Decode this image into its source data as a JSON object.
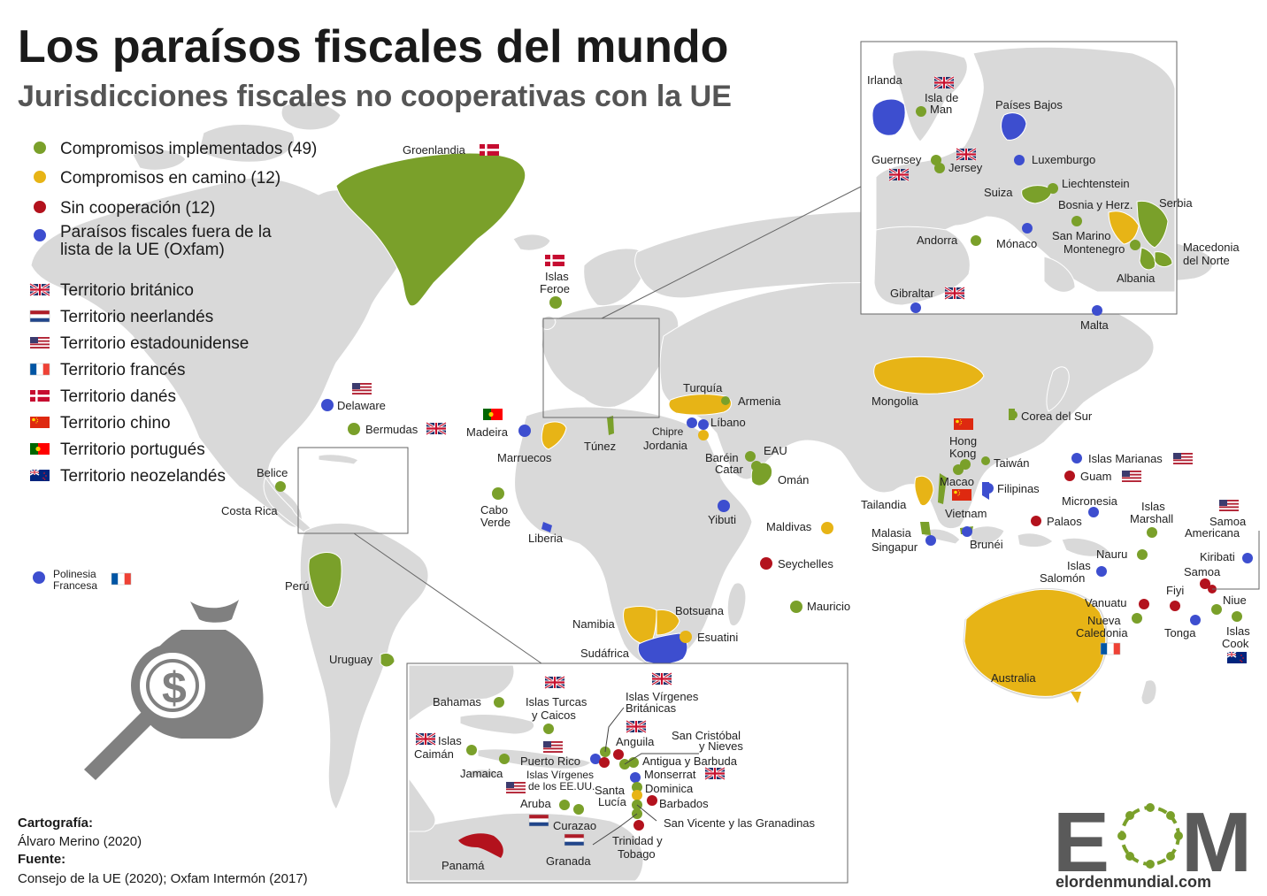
{
  "header": {
    "title": "Los paraísos fiscales del mundo",
    "subtitle": "Jurisdicciones fiscales no cooperativas con la UE"
  },
  "colors": {
    "implemented": "#7aa02a",
    "on_track": "#e7b416",
    "no_coop": "#b3121d",
    "outside_list": "#3d4ecf",
    "land": "#d9d9d9",
    "sea": "#ffffff",
    "icon": "#808080"
  },
  "legend": {
    "status": [
      {
        "label": "Compromisos implementados (49)",
        "color": "#7aa02a"
      },
      {
        "label": "Compromisos en camino (12)",
        "color": "#e7b416"
      },
      {
        "label": "Sin cooperación (12)",
        "color": "#b3121d"
      },
      {
        "label": "Paraísos fiscales fuera de la",
        "label2": "lista de la UE (Oxfam)",
        "color": "#3d4ecf"
      }
    ],
    "territories": [
      {
        "label": "Territorio británico",
        "flag": "uk-flag"
      },
      {
        "label": "Territorio neerlandés",
        "flag": "nl-flag"
      },
      {
        "label": "Territorio estadounidense",
        "flag": "us-flag"
      },
      {
        "label": "Territorio francés",
        "flag": "fr-flag"
      },
      {
        "label": "Territorio danés",
        "flag": "dk-flag"
      },
      {
        "label": "Territorio chino",
        "flag": "cn-flag"
      },
      {
        "label": "Territorio portugués",
        "flag": "pt-flag"
      },
      {
        "label": "Territorio neozelandés",
        "flag": "nz-flag"
      }
    ]
  },
  "labels": {
    "groenlandia": "Groenlandia",
    "islas_feroe_1": "Islas",
    "islas_feroe_2": "Feroe",
    "delaware": "Delaware",
    "bermudas": "Bermudas",
    "madeira": "Madeira",
    "marruecos": "Marruecos",
    "tunez": "Túnez",
    "chipre": "Chipre",
    "jordania": "Jordania",
    "turquia": "Turquía",
    "armenia": "Armenia",
    "libano": "Líbano",
    "barein": "Baréin",
    "catar": "Catar",
    "eau": "EAU",
    "oman": "Omán",
    "mongolia": "Mongolia",
    "corea": "Corea del Sur",
    "hong_kong_1": "Hong",
    "hong_kong_2": "Kong",
    "macao": "Macao",
    "taiwan": "Taiwán",
    "filipinas": "Filipinas",
    "tailandia": "Tailandia",
    "vietnam": "Vietnam",
    "malasia": "Malasia",
    "singapur": "Singapur",
    "brunei": "Brunéi",
    "belice": "Belice",
    "costa_rica": "Costa Rica",
    "cabo_verde_1": "Cabo",
    "cabo_verde_2": "Verde",
    "liberia": "Liberia",
    "yibuti": "Yibuti",
    "maldivas": "Maldivas",
    "seychelles": "Seychelles",
    "mauricio": "Mauricio",
    "polinesia_1": "Polinesia",
    "polinesia_2": "Francesa",
    "peru": "Perú",
    "uruguay": "Uruguay",
    "namibia": "Namibia",
    "botsuana": "Botsuana",
    "esuatini": "Esuatini",
    "sudafrica": "Sudáfrica",
    "islas_marianas": "Islas Marianas",
    "guam": "Guam",
    "micronesia": "Micronesia",
    "palaos": "Palaos",
    "islas_marshall_1": "Islas",
    "islas_marshall_2": "Marshall",
    "samoa_americana_1": "Samoa",
    "samoa_americana_2": "Americana",
    "nauru": "Nauru",
    "kiribati": "Kiribati",
    "islas_salomon_1": "Islas",
    "islas_salomon_2": "Salomón",
    "samoa": "Samoa",
    "fiyi": "Fiyi",
    "vanuatu": "Vanuatu",
    "niue": "Niue",
    "nueva_caledonia_1": "Nueva",
    "nueva_caledonia_2": "Caledonia",
    "tonga": "Tonga",
    "islas_cook_1": "Islas",
    "islas_cook_2": "Cook",
    "australia": "Australia"
  },
  "europe_inset": {
    "irlanda": "Irlanda",
    "isla_de_man_1": "Isla de",
    "isla_de_man_2": "Man",
    "paises_bajos": "Países Bajos",
    "guernsey": "Guernsey",
    "jersey": "Jersey",
    "luxemburgo": "Luxemburgo",
    "suiza": "Suiza",
    "liechtenstein": "Liechtenstein",
    "bosnia": "Bosnia y Herz.",
    "serbia": "Serbia",
    "andorra": "Andorra",
    "monaco": "Mónaco",
    "san_marino": "San Marino",
    "montenegro": "Montenegro",
    "macedonia_1": "Macedonia",
    "macedonia_2": "del Norte",
    "albania": "Albania",
    "gibraltar": "Gibraltar",
    "malta": "Malta"
  },
  "caribbean_inset": {
    "bahamas": "Bahamas",
    "turcas_1": "Islas Turcas",
    "turcas_2": "y Caicos",
    "virgenes_brit_1": "Islas Vírgenes",
    "virgenes_brit_2": "Británicas",
    "caiman_1": "Islas",
    "caiman_2": "Caimán",
    "anguila": "Anguila",
    "san_cristobal_1": "San Cristóbal",
    "san_cristobal_2": "y Nieves",
    "puerto_rico": "Puerto Rico",
    "antigua": "Antigua y Barbuda",
    "jamaica": "Jamaica",
    "virgenes_us_1": "Islas Vírgenes",
    "virgenes_us_2": "de los EE.UU.",
    "monserrat": "Monserrat",
    "santa_lucia_1": "Santa",
    "santa_lucia_2": "Lucía",
    "dominica": "Dominica",
    "aruba": "Aruba",
    "barbados": "Barbados",
    "curazao": "Curazao",
    "san_vicente": "San Vicente y las Granadinas",
    "trinidad_1": "Trinidad y",
    "trinidad_2": "Tobago",
    "granada": "Granada",
    "panama": "Panamá"
  },
  "credits": {
    "cartografia_label": "Cartografía:",
    "cartografia_value": "Álvaro Merino (2020)",
    "fuente_label": "Fuente:",
    "fuente_value": "Consejo de la UE (2020); Oxfam Intermón (2017)"
  },
  "logo": {
    "letters_e": "E",
    "letters_m": "M",
    "site": "elordenmundial.com"
  },
  "icons": [
    "money-bag-icon",
    "magnifying-glass-icon",
    "dollar-sign-icon"
  ]
}
